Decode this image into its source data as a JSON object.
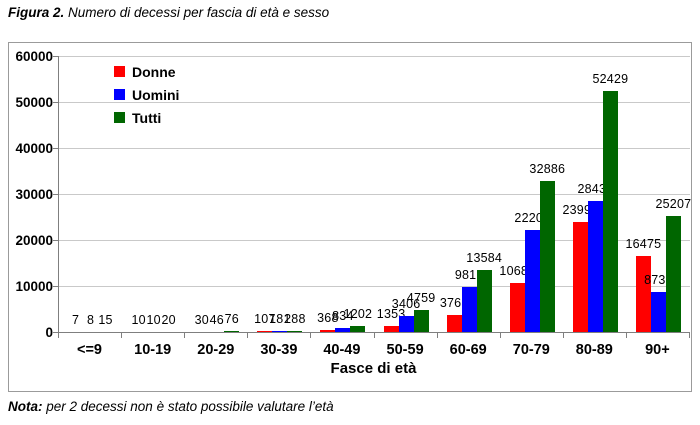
{
  "figure": {
    "title_prefix": "Figura 2.",
    "title_rest": " Numero di decessi per fascia di età e sesso",
    "note_prefix": "Nota:",
    "note_rest": " per 2 decessi non è stato possibile valutare l’età"
  },
  "chart_data": {
    "type": "bar",
    "title": "Numero di decessi per fascia di età e sesso",
    "xlabel": "Fasce di età",
    "ylabel": "",
    "ylim": [
      0,
      60000
    ],
    "yticks": [
      0,
      10000,
      20000,
      30000,
      40000,
      50000,
      60000
    ],
    "grid": true,
    "legend_position": "top-left-inside",
    "categories": [
      "<=9",
      "10-19",
      "20-29",
      "30-39",
      "40-49",
      "50-59",
      "60-69",
      "70-79",
      "80-89",
      "90+"
    ],
    "series": [
      {
        "name": "Donne",
        "color": "#ff0000",
        "values": [
          7,
          10,
          30,
          107,
          368,
          1353,
          3765,
          10682,
          23995,
          16475
        ]
      },
      {
        "name": "Uomini",
        "color": "#0000ff",
        "values": [
          8,
          10,
          46,
          181,
          834,
          3406,
          9819,
          22204,
          28434,
          8732
        ]
      },
      {
        "name": "Tutti",
        "color": "#006600",
        "values": [
          15,
          20,
          76,
          288,
          1202,
          4759,
          13584,
          32886,
          52429,
          25207
        ]
      }
    ],
    "axis_color": "#7f7f7f",
    "gridline_color": "#c9c9c9"
  }
}
